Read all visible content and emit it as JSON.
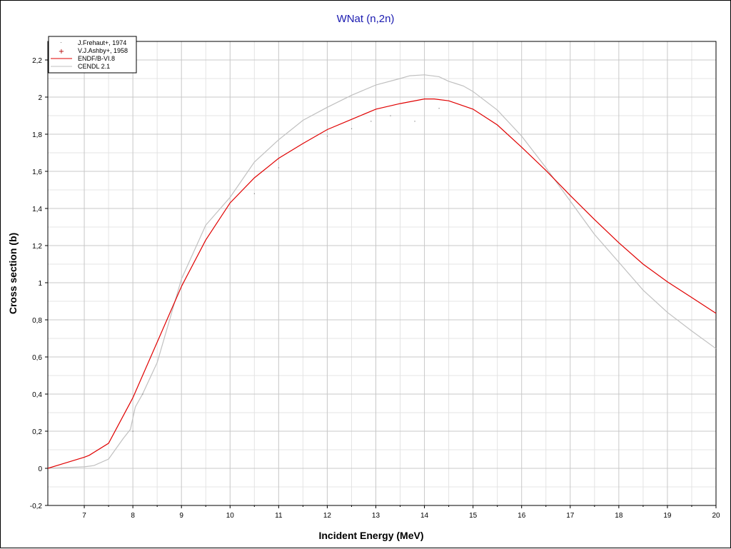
{
  "colors": {
    "title": "#1a1ab0",
    "grid": "#c8c8c8",
    "endf": "#e00000",
    "cendl": "#c0c0c0",
    "frehaut": "#808080",
    "ashby": "#b00000"
  },
  "chart_data": {
    "type": "line",
    "title": "WNat (n,2n)",
    "xlabel": "Incident Energy (MeV)",
    "ylabel": "Cross section (b)",
    "xlim": [
      6.25,
      20
    ],
    "ylim": [
      -0.2,
      2.3
    ],
    "grid": true,
    "legend_position": "top-left",
    "x_ticks": [
      "7",
      "8",
      "9",
      "10",
      "11",
      "12",
      "13",
      "14",
      "15",
      "16",
      "17",
      "18",
      "19",
      "20"
    ],
    "y_ticks": [
      "-0,2",
      "0",
      "0,2",
      "0,4",
      "0,6",
      "0,8",
      "1",
      "1,2",
      "1,4",
      "1,6",
      "1,8",
      "2",
      "2,2"
    ],
    "series": [
      {
        "name": "J.Frehaut+, 1974",
        "kind": "points",
        "x": [
          8.0,
          8.2,
          10.5,
          11.0,
          12.0,
          12.5,
          12.9,
          13.3,
          13.8,
          14.3
        ],
        "y": [
          0.2,
          0.4,
          1.48,
          1.62,
          1.79,
          1.83,
          1.87,
          1.9,
          1.87,
          1.94
        ]
      },
      {
        "name": "V.J.Ashby+, 1958",
        "kind": "points",
        "x": [],
        "y": []
      },
      {
        "name": "ENDF/B-VI.8",
        "kind": "line",
        "x": [
          6.25,
          6.5,
          7.0,
          7.1,
          7.5,
          8.0,
          8.5,
          9.0,
          9.5,
          10.0,
          10.5,
          11.0,
          11.5,
          12.0,
          12.5,
          13.0,
          13.5,
          14.0,
          14.2,
          14.5,
          15.0,
          15.5,
          16.0,
          16.5,
          17.0,
          17.5,
          18.0,
          18.5,
          19.0,
          19.5,
          20.0
        ],
        "y": [
          0.0,
          0.02,
          0.06,
          0.07,
          0.135,
          0.38,
          0.68,
          0.98,
          1.23,
          1.43,
          1.565,
          1.67,
          1.75,
          1.825,
          1.88,
          1.935,
          1.965,
          1.99,
          1.99,
          1.98,
          1.935,
          1.85,
          1.73,
          1.605,
          1.47,
          1.34,
          1.215,
          1.1,
          1.005,
          0.92,
          0.835
        ]
      },
      {
        "name": "CENDL 2.1",
        "kind": "line",
        "x": [
          6.25,
          6.5,
          7.0,
          7.2,
          7.5,
          7.8,
          7.95,
          8.05,
          8.2,
          8.5,
          9.0,
          9.5,
          10.0,
          10.5,
          11.0,
          11.5,
          12.0,
          12.5,
          13.0,
          13.5,
          13.7,
          14.0,
          14.3,
          14.5,
          14.8,
          15.0,
          15.5,
          16.0,
          16.5,
          17.0,
          17.5,
          18.0,
          18.5,
          19.0,
          19.5,
          20.0
        ],
        "y": [
          0.0,
          0.003,
          0.008,
          0.015,
          0.05,
          0.16,
          0.21,
          0.33,
          0.4,
          0.57,
          1.02,
          1.31,
          1.46,
          1.65,
          1.77,
          1.875,
          1.945,
          2.01,
          2.065,
          2.1,
          2.115,
          2.12,
          2.11,
          2.085,
          2.06,
          2.03,
          1.93,
          1.79,
          1.62,
          1.44,
          1.26,
          1.11,
          0.96,
          0.84,
          0.74,
          0.645
        ]
      }
    ]
  }
}
